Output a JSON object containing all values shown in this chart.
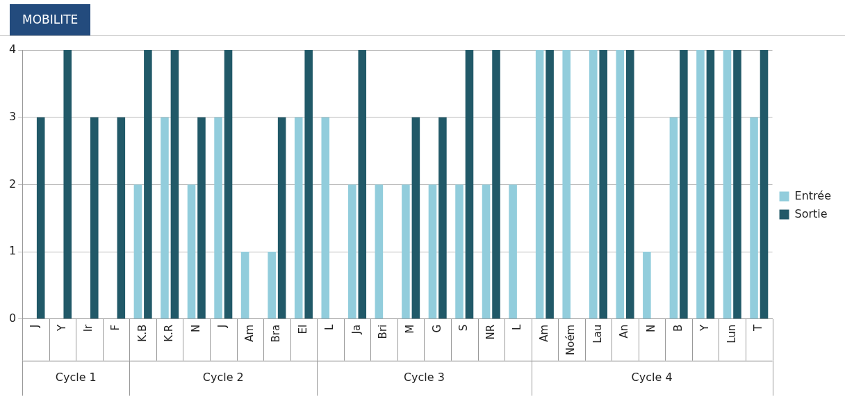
{
  "chart_data": {
    "type": "bar",
    "title": "MOBILITE",
    "categories": [
      "J",
      "Y",
      "Ir",
      "F",
      "K.B",
      "K.R",
      "N",
      "J",
      "Am",
      "Bra",
      "El",
      "L",
      "Ja",
      "Bri",
      "M",
      "G",
      "S",
      "NR",
      "L",
      "Am",
      "Noém",
      "Lau",
      "An",
      "N",
      "B",
      "Y",
      "Lun",
      "T"
    ],
    "series": [
      {
        "name": "Entrée",
        "color": "#92cddc",
        "values": [
          0,
          0,
          0,
          0,
          2,
          3,
          2,
          3,
          1,
          1,
          3,
          3,
          2,
          2,
          2,
          2,
          2,
          2,
          2,
          4,
          4,
          4,
          4,
          1,
          3,
          4,
          4,
          3
        ]
      },
      {
        "name": "Sortie",
        "color": "#215968",
        "values": [
          3,
          4,
          3,
          3,
          4,
          4,
          3,
          4,
          0,
          3,
          4,
          0,
          4,
          0,
          3,
          3,
          4,
          4,
          0,
          4,
          0,
          4,
          4,
          0,
          4,
          4,
          4,
          4
        ]
      }
    ],
    "ylim": [
      0,
      4
    ],
    "yticks": [
      0,
      1,
      2,
      3,
      4
    ],
    "grid": "y",
    "legend": "right",
    "annotations": [
      "Cycle 1",
      "Cycle 2",
      "Cycle 3",
      "Cycle 4"
    ]
  }
}
